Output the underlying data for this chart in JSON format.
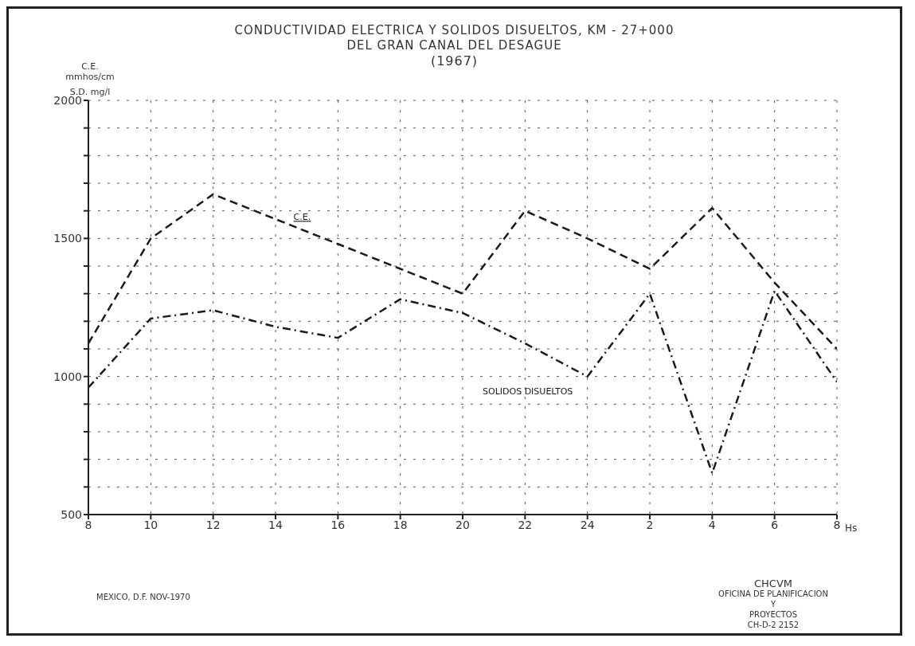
{
  "chart_data": {
    "type": "line",
    "title": "CONDUCTIVIDAD ELECTRICA Y SOLIDOS DISUELTOS, KM - 27+000 DEL GRAN CANAL DEL DESAGUE",
    "subtitle": "(1967)",
    "ylabel": "C.E. mmhos/cm",
    "xlabel": "Hs",
    "categories": [
      "8",
      "10",
      "12",
      "14",
      "16",
      "18",
      "20",
      "22",
      "24",
      "2",
      "4",
      "6",
      "8"
    ],
    "series": [
      {
        "name": "C.E.",
        "color": "#1a1a1a",
        "line_style": "dashed",
        "values": [
          1120,
          1500,
          1660,
          1570,
          1480,
          1390,
          1300,
          1600,
          1500,
          1390,
          1610,
          1340,
          1100
        ]
      },
      {
        "name": "SOLIDOS DISUELTOS",
        "color": "#1a1a1a",
        "line_style": "dashdot",
        "values": [
          960,
          1210,
          1240,
          1180,
          1140,
          1280,
          1230,
          1120,
          1000,
          1300,
          650,
          1310,
          980
        ]
      }
    ],
    "ylim": [
      500,
      2000
    ],
    "yticks": [
      500,
      {
        "value": 600,
        "label": null
      },
      {
        "value": 700,
        "label": null
      },
      {
        "value": 800,
        "label": null
      },
      {
        "value": 900,
        "label": null
      },
      1000,
      {
        "value": 1100,
        "label": null
      },
      {
        "value": 1200,
        "label": null
      },
      {
        "value": 1300,
        "label": null
      },
      {
        "value": 1400,
        "label": null
      },
      1500,
      {
        "value": 1600,
        "label": null
      },
      {
        "value": 1700,
        "label": null
      },
      {
        "value": 1800,
        "label": null
      },
      {
        "value": 1900,
        "label": null
      },
      2000
    ],
    "grid": true,
    "marker": "none",
    "annotations": [
      "S.D. mg/l",
      "MEXICO, D.F. NOV-1970",
      "CHCVM",
      "OFICINA DE PLANIFICACION",
      "Y",
      "PROYECTOS",
      "CH-D-2 2152"
    ]
  }
}
